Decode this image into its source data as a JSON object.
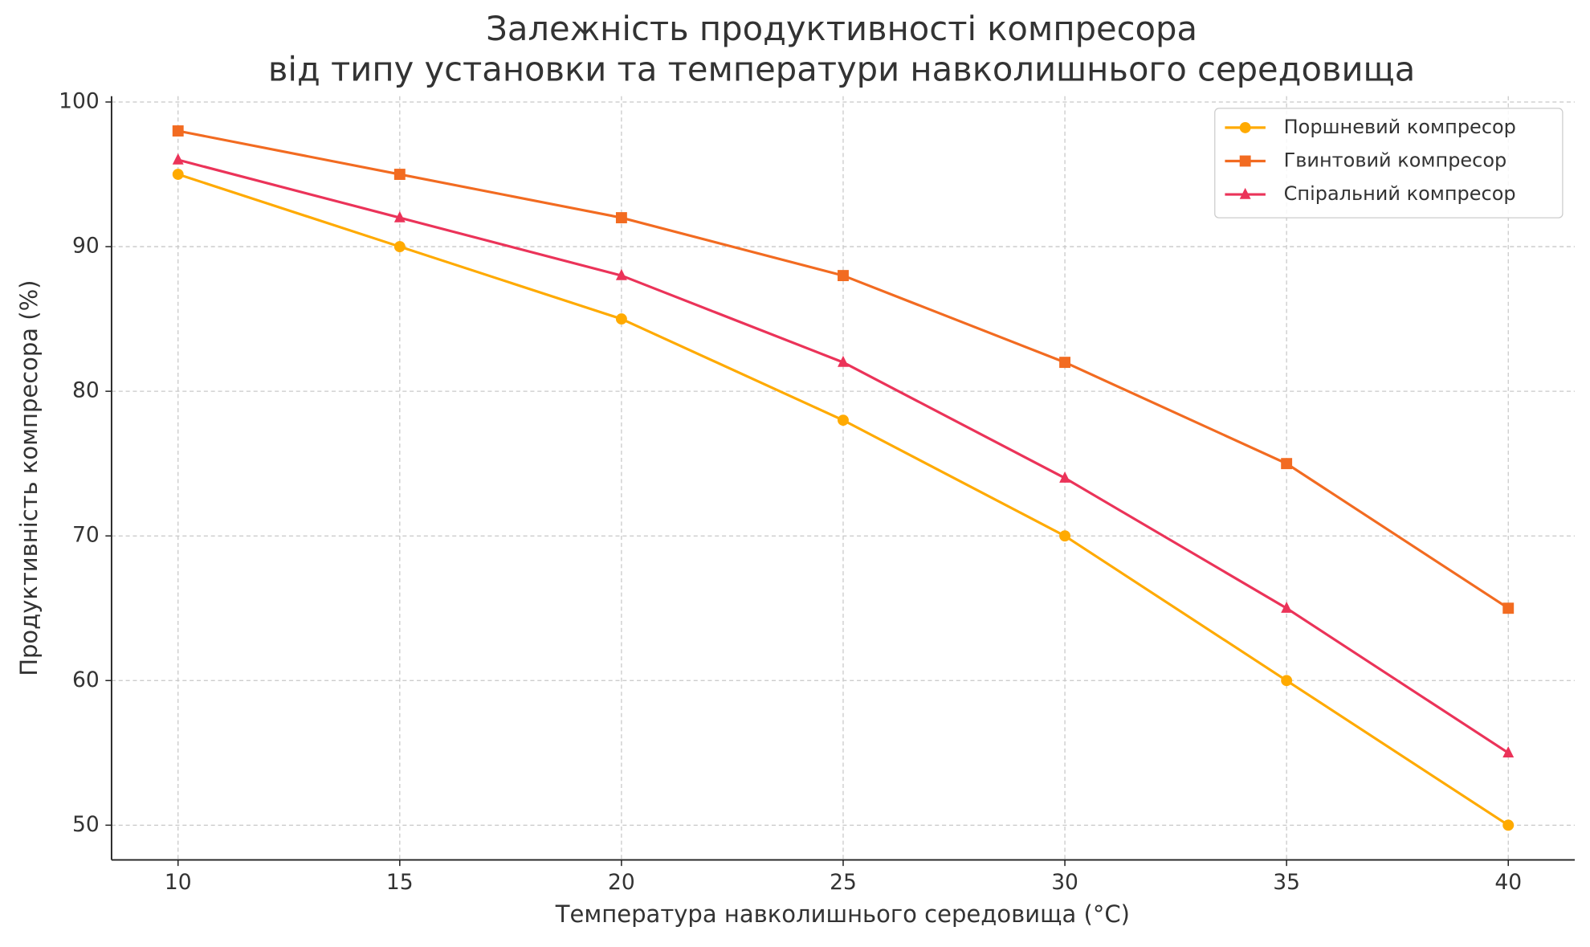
{
  "chart_data": {
    "type": "line",
    "title": [
      "Залежність продуктивності компресора",
      "від типу установки та температури навколишнього середовища"
    ],
    "x_label": "Температура навколишнього середовища (°C)",
    "y_label": "Продуктивність компресора (%)",
    "x": [
      10,
      15,
      20,
      25,
      30,
      35,
      40
    ],
    "series": [
      {
        "name": "Поршневий компресор",
        "color": "#ffaa00",
        "marker": "circle",
        "values": [
          95,
          90,
          85,
          78,
          70,
          60,
          50
        ]
      },
      {
        "name": "Гвинтовий компресор",
        "color": "#f26b21",
        "marker": "square",
        "values": [
          98,
          95,
          92,
          88,
          82,
          75,
          65
        ]
      },
      {
        "name": "Спіральний компресор",
        "color": "#eb3359",
        "marker": "triangle",
        "values": [
          96,
          92,
          88,
          82,
          74,
          65,
          55
        ]
      }
    ],
    "xlim": [
      8.5,
      41.5
    ],
    "xticks": [
      10,
      15,
      20,
      25,
      30,
      35,
      40
    ],
    "ylim": [
      47.6,
      100.4
    ],
    "yticks": [
      50,
      60,
      70,
      80,
      90,
      100
    ],
    "grid": true,
    "legend": "upper right"
  }
}
